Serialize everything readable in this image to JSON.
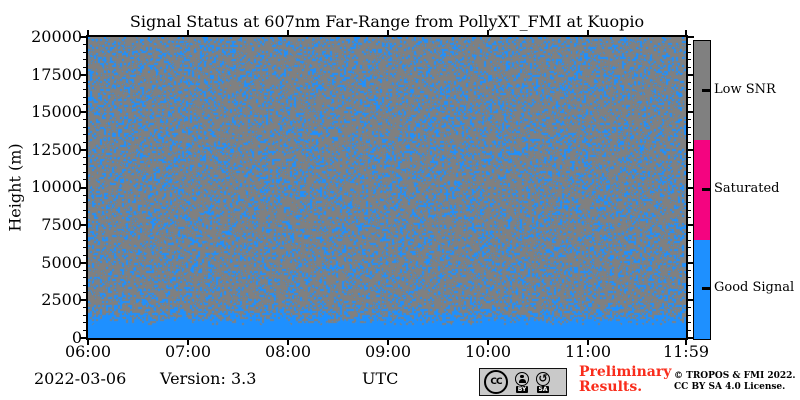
{
  "title": "Signal Status at 607nm Far-Range from PollyXT_FMI at Kuopio",
  "axes": {
    "ylabel": "Height (m)",
    "yticks": [
      "20000",
      "17500",
      "15000",
      "12500",
      "10000",
      "7500",
      "5000",
      "2500",
      "0"
    ],
    "xticks": [
      "06:00",
      "07:00",
      "08:00",
      "09:00",
      "10:00",
      "11:00",
      "11:59"
    ]
  },
  "colorbar": {
    "segments": [
      {
        "label": "Low SNR",
        "color": "#808080"
      },
      {
        "label": "Saturated",
        "color": "#f40480"
      },
      {
        "label": "Good Signal",
        "color": "#1e90ff"
      }
    ]
  },
  "footer": {
    "date": "2022-03-06",
    "version": "Version: 3.3",
    "timezone": "UTC",
    "cc_badge": {
      "cc": "CC",
      "by": "BY",
      "sa": "SA"
    },
    "preliminary": {
      "line1": "Preliminary",
      "line2": "Results.",
      "color": "#f92c1b"
    },
    "copyright": {
      "line1": "© TROPOS & FMI 2022.",
      "line2": "CC BY SA 4.0 License."
    }
  },
  "chart_data": {
    "type": "heatmap",
    "title": "Signal Status at 607nm Far-Range from PollyXT_FMI at Kuopio",
    "date": "2022-03-06",
    "xlabel": "UTC",
    "ylabel": "Height (m)",
    "x_range": [
      "06:00",
      "11:59"
    ],
    "xticks": [
      "06:00",
      "07:00",
      "08:00",
      "09:00",
      "10:00",
      "11:00",
      "11:59"
    ],
    "ylim": [
      0,
      20000
    ],
    "yticks": [
      0,
      2500,
      5000,
      7500,
      10000,
      12500,
      15000,
      17500,
      20000
    ],
    "y_minor_tick_step": 500,
    "classes": [
      {
        "value": "Good Signal",
        "color": "#1e90ff"
      },
      {
        "value": "Saturated",
        "color": "#f40480"
      },
      {
        "value": "Low SNR",
        "color": "#808080"
      }
    ],
    "legend_position": "right colorbar, three equal segments",
    "pattern": {
      "description": "Uniform random speckle of Good Signal pixels (~25%) over a Low SNR gray background at all times and heights; speckle density increases below ~2600 m and becomes a solid Good Signal band below ~800 m; no Saturated pixels visible in the plot.",
      "speckle_fraction": 0.25,
      "solid_good_signal_below_m": 800,
      "density_transition_top_m": 2600
    }
  }
}
